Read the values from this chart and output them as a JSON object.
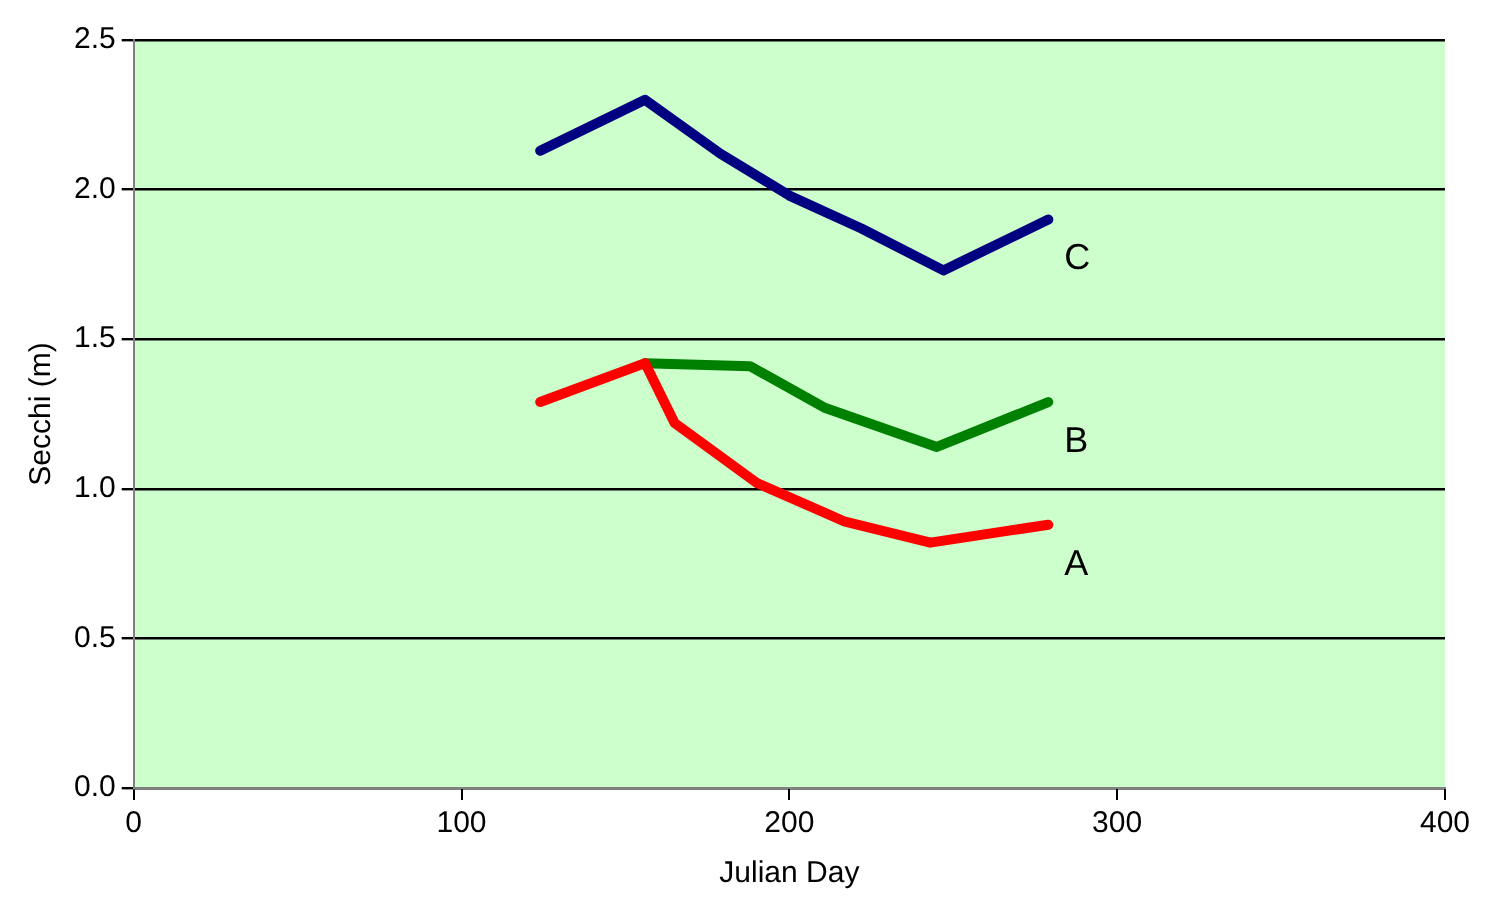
{
  "chart_data": {
    "type": "line",
    "xlabel": "Julian Day",
    "ylabel": "Secchi (m)",
    "xlim": [
      0,
      400
    ],
    "xticks": [
      0,
      100,
      200,
      300,
      400
    ],
    "ylim": [
      0,
      2.5
    ],
    "yticks": [
      {
        "value": 0,
        "label": "0.0"
      },
      0.5,
      {
        "value": 1,
        "label": "1.0"
      },
      1.5,
      {
        "value": 2,
        "label": "2.0"
      },
      2.5
    ],
    "grid": "y",
    "legend": false,
    "marker": "none",
    "line_style": "solid",
    "series": [
      {
        "name": "A",
        "color": "#ff0000",
        "x": [
          124,
          156,
          165,
          190,
          217,
          243,
          279
        ],
        "values": [
          1.29,
          1.42,
          1.22,
          1.02,
          0.89,
          0.82,
          0.88
        ]
      },
      {
        "name": "B",
        "color": "#008000",
        "x": [
          156,
          188,
          211,
          245,
          279
        ],
        "values": [
          1.42,
          1.41,
          1.27,
          1.14,
          1.29
        ]
      },
      {
        "name": "C",
        "color": "#000080",
        "x": [
          124,
          156,
          179,
          200,
          222,
          247,
          279
        ],
        "values": [
          2.13,
          2.3,
          2.12,
          1.98,
          1.87,
          1.73,
          1.9
        ]
      }
    ]
  }
}
